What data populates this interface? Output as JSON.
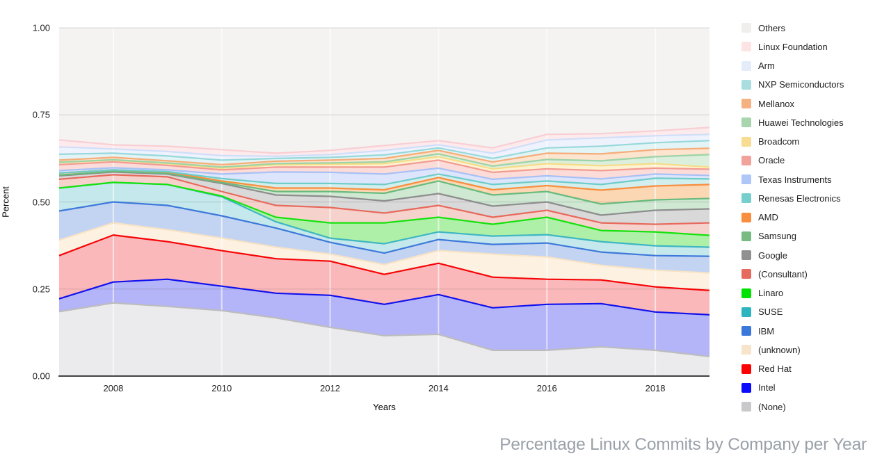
{
  "title": "Percentage Linux Commits by Company per Year",
  "axes": {
    "y_label": "Percent",
    "x_label": "Years",
    "y_ticks": [
      "0.00",
      "0.25",
      "0.50",
      "0.75",
      "1.00"
    ],
    "x_ticks": [
      "2008",
      "2010",
      "2012",
      "2014",
      "2016",
      "2018"
    ]
  },
  "chart_data": {
    "type": "area",
    "stacked": true,
    "title": "Percentage Linux Commits by Company per Year",
    "xlabel": "Years",
    "ylabel": "Percent",
    "ylim": [
      0,
      1
    ],
    "xlim": [
      2007,
      2019
    ],
    "grid": true,
    "legend_position": "right",
    "legend_note": "legend lists series top-of-stack first (reverse of stacking order)",
    "x": [
      2007,
      2008,
      2009,
      2010,
      2011,
      2012,
      2013,
      2014,
      2015,
      2016,
      2017,
      2018,
      2019
    ],
    "series": [
      {
        "name": "(None)",
        "swatch": "#c9c9cb",
        "line": "#bcbcbe",
        "fill": "#ebebed",
        "values": [
          0.185,
          0.21,
          0.2,
          0.188,
          0.167,
          0.14,
          0.116,
          0.12,
          0.074,
          0.074,
          0.084,
          0.074,
          0.056
        ]
      },
      {
        "name": "Intel",
        "swatch": "#0a0afc",
        "line": "#1111ee",
        "fill": "#b4b4f8",
        "values": [
          0.037,
          0.06,
          0.078,
          0.07,
          0.071,
          0.092,
          0.09,
          0.114,
          0.122,
          0.132,
          0.124,
          0.11,
          0.12
        ]
      },
      {
        "name": "Red Hat",
        "swatch": "#fb0300",
        "line": "#f50507",
        "fill": "#fbb8ba",
        "values": [
          0.124,
          0.135,
          0.108,
          0.102,
          0.099,
          0.098,
          0.086,
          0.09,
          0.088,
          0.072,
          0.068,
          0.072,
          0.07
        ]
      },
      {
        "name": "(unknown)",
        "swatch": "#f8e4cb",
        "line": "#f8e3c5",
        "fill": "#fdf2e2",
        "values": [
          0.044,
          0.035,
          0.034,
          0.036,
          0.033,
          0.02,
          0.028,
          0.036,
          0.066,
          0.064,
          0.042,
          0.048,
          0.05
        ]
      },
      {
        "name": "IBM",
        "swatch": "#3a78db",
        "line": "#3d79da",
        "fill": "#c3d4f2",
        "values": [
          0.084,
          0.06,
          0.07,
          0.064,
          0.055,
          0.034,
          0.033,
          0.032,
          0.028,
          0.04,
          0.038,
          0.042,
          0.048
        ]
      },
      {
        "name": "SUSE",
        "swatch": "#2cb5bf",
        "line": "#3eb7c1",
        "fill": "#c4e8ec",
        "values": [
          0.066,
          0.056,
          0.06,
          0.055,
          0.018,
          0.012,
          0.027,
          0.022,
          0.024,
          0.024,
          0.03,
          0.028,
          0.026
        ]
      },
      {
        "name": "Linaro",
        "swatch": "#00e200",
        "line": "#16e20d",
        "fill": "#aff0a8",
        "values": [
          0.0,
          0.0,
          0.0,
          0.002,
          0.013,
          0.044,
          0.06,
          0.042,
          0.034,
          0.05,
          0.032,
          0.04,
          0.034
        ]
      },
      {
        "name": "(Consultant)",
        "swatch": "#e66a5e",
        "line": "#e76a5d",
        "fill": "#f6d2cd",
        "values": [
          0.025,
          0.022,
          0.022,
          0.013,
          0.034,
          0.044,
          0.028,
          0.034,
          0.02,
          0.02,
          0.022,
          0.022,
          0.036
        ]
      },
      {
        "name": "Google",
        "swatch": "#909090",
        "line": "#8d8d8d",
        "fill": "#d9d9d9",
        "values": [
          0.01,
          0.008,
          0.008,
          0.023,
          0.03,
          0.032,
          0.035,
          0.034,
          0.032,
          0.024,
          0.022,
          0.04,
          0.04
        ]
      },
      {
        "name": "Samsung",
        "swatch": "#77bb83",
        "line": "#68bb7d",
        "fill": "#cfe8d2",
        "values": [
          0.002,
          0.002,
          0.002,
          0.003,
          0.01,
          0.014,
          0.022,
          0.036,
          0.032,
          0.03,
          0.032,
          0.03,
          0.03
        ]
      },
      {
        "name": "AMD",
        "swatch": "#f88e3e",
        "line": "#f98e3d",
        "fill": "#fbd7b3",
        "values": [
          0.006,
          0.004,
          0.004,
          0.004,
          0.01,
          0.01,
          0.01,
          0.01,
          0.015,
          0.017,
          0.04,
          0.04,
          0.04
        ]
      },
      {
        "name": "Renesas Electronics",
        "swatch": "#76cfcc",
        "line": "#6eccc9",
        "fill": "#d2efee",
        "values": [
          0.0,
          0.0,
          0.001,
          0.007,
          0.013,
          0.013,
          0.015,
          0.01,
          0.015,
          0.013,
          0.016,
          0.022,
          0.016
        ]
      },
      {
        "name": "Texas Instruments",
        "swatch": "#aec6f8",
        "line": "#a9c0f6",
        "fill": "#dce5fb",
        "values": [
          0.007,
          0.006,
          0.005,
          0.013,
          0.033,
          0.032,
          0.03,
          0.017,
          0.015,
          0.015,
          0.016,
          0.012,
          0.01
        ]
      },
      {
        "name": "Oracle",
        "swatch": "#f0a29b",
        "line": "#f29b92",
        "fill": "#fbdcd9",
        "values": [
          0.017,
          0.017,
          0.013,
          0.012,
          0.014,
          0.015,
          0.02,
          0.023,
          0.02,
          0.02,
          0.024,
          0.017,
          0.018
        ]
      },
      {
        "name": "Broadcom",
        "swatch": "#f8dc92",
        "line": "#f6dc88",
        "fill": "#fdf3d2",
        "values": [
          0.006,
          0.005,
          0.005,
          0.005,
          0.007,
          0.008,
          0.01,
          0.01,
          0.01,
          0.015,
          0.014,
          0.013,
          0.006
        ]
      },
      {
        "name": "Huawei Technologies",
        "swatch": "#a8d4ae",
        "line": "#9dd3a6",
        "fill": "#dcefdd",
        "values": [
          0.001,
          0.001,
          0.002,
          0.003,
          0.003,
          0.004,
          0.005,
          0.008,
          0.008,
          0.012,
          0.014,
          0.02,
          0.036
        ]
      },
      {
        "name": "Mellanox",
        "swatch": "#f6b183",
        "line": "#f6ac77",
        "fill": "#fce4ce",
        "values": [
          0.006,
          0.007,
          0.006,
          0.007,
          0.007,
          0.008,
          0.01,
          0.01,
          0.012,
          0.018,
          0.02,
          0.02,
          0.018
        ]
      },
      {
        "name": "NXP Semiconductors",
        "swatch": "#aaddde",
        "line": "#97d8da",
        "fill": "#e2f4f5",
        "values": [
          0.017,
          0.012,
          0.014,
          0.013,
          0.008,
          0.008,
          0.01,
          0.007,
          0.01,
          0.015,
          0.022,
          0.02,
          0.022
        ]
      },
      {
        "name": "Arm",
        "swatch": "#e4ecfa",
        "line": "#cfdef9",
        "fill": "#eef2fd",
        "values": [
          0.021,
          0.012,
          0.013,
          0.013,
          0.006,
          0.008,
          0.013,
          0.009,
          0.015,
          0.023,
          0.024,
          0.02,
          0.018
        ]
      },
      {
        "name": "Linux Foundation",
        "swatch": "#fce4e4",
        "line": "#f8ced3",
        "fill": "#fdeaec",
        "values": [
          0.02,
          0.012,
          0.015,
          0.017,
          0.009,
          0.012,
          0.014,
          0.012,
          0.015,
          0.016,
          0.012,
          0.014,
          0.02
        ]
      },
      {
        "name": "Others",
        "swatch": "#f0efed",
        "line": "",
        "fill": "#f4f3f1",
        "values": [
          0.322,
          0.336,
          0.34,
          0.35,
          0.36,
          0.352,
          0.338,
          0.324,
          0.345,
          0.306,
          0.304,
          0.296,
          0.286
        ]
      }
    ]
  }
}
